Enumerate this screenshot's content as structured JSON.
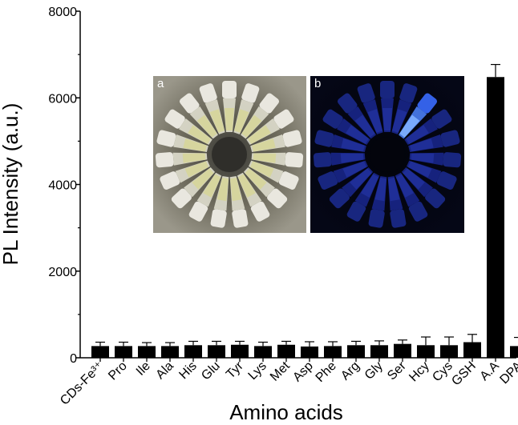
{
  "chart_data": {
    "type": "bar",
    "xlabel": "Amino acids",
    "ylabel": "PL Intensity (a.u.)",
    "ylim": [
      0,
      8000
    ],
    "yticks": [
      0,
      2000,
      4000,
      6000,
      8000
    ],
    "grid": false,
    "legend": "none",
    "bar_color": "#000000",
    "categories": [
      "CDs-Fe³⁺",
      "Pro",
      "Ile",
      "Ala",
      "His",
      "Glu",
      "Tyr",
      "Lys",
      "Met",
      "Asp",
      "Phe",
      "Arg",
      "Gly",
      "Ser",
      "Hcy",
      "Cys",
      "GSH",
      "A.A",
      "DPA"
    ],
    "values": [
      270,
      270,
      270,
      270,
      290,
      290,
      300,
      270,
      300,
      260,
      270,
      290,
      290,
      320,
      290,
      290,
      360,
      6480,
      270
    ],
    "errors": [
      90,
      90,
      80,
      80,
      90,
      90,
      80,
      90,
      80,
      110,
      100,
      90,
      100,
      90,
      190,
      190,
      180,
      290,
      200
    ]
  },
  "insets": [
    {
      "letter": "a",
      "description_icon": "tube-rack-daylight-photo"
    },
    {
      "letter": "b",
      "description_icon": "tube-rack-uv-photo"
    }
  ]
}
